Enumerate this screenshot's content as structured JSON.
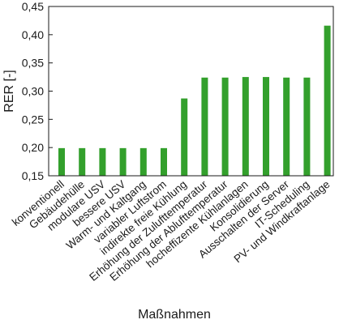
{
  "chart_data": {
    "type": "bar",
    "xlabel": "Maßnahmen",
    "ylabel": "RER [-]",
    "ylim": [
      0.15,
      0.45
    ],
    "yticks": [
      "0,15",
      "0,20",
      "0,25",
      "0,30",
      "0,35",
      "0,40",
      "0,45"
    ],
    "grid": false,
    "bar_color": "#33a02c",
    "categories": [
      "konventionell",
      "Gebäudehülle",
      "modulare USV",
      "bessere USV",
      "Warm- und Kaltgang",
      "variabler Luftstrom",
      "indirekte freie Kühlung",
      "Erhöhung der Zulufttemperatur",
      "Erhöhung der Ablufttemperatur",
      "hocheffizente Kühlanlagen",
      "Konsolidierung",
      "Ausschalten der Server",
      "IT-Scheduling",
      "PV- und Windkraftanlage"
    ],
    "values": [
      0.199,
      0.199,
      0.199,
      0.199,
      0.199,
      0.199,
      0.287,
      0.324,
      0.324,
      0.325,
      0.325,
      0.324,
      0.324,
      0.416
    ]
  }
}
